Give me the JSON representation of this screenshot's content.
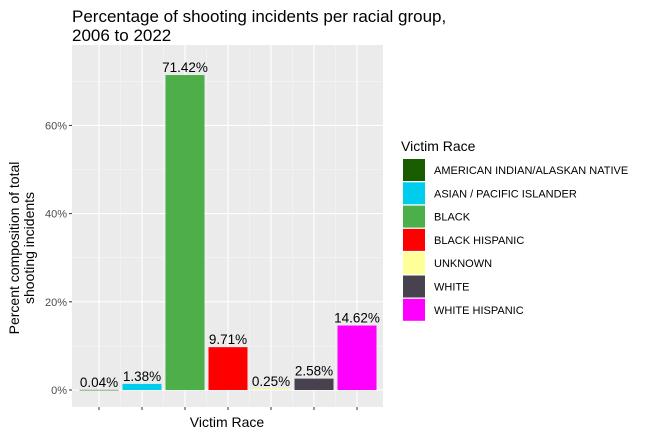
{
  "chart_data": {
    "type": "bar",
    "title_lines": [
      "Percentage of shooting incidents per racial group,",
      "2006 to 2022"
    ],
    "xlabel": "Victim Race",
    "ylabel_lines": [
      "Percent composition of total",
      "shooting incidents"
    ],
    "categories": [
      "AMERICAN INDIAN/ALASKAN NATIVE",
      "ASIAN / PACIFIC ISLANDER",
      "BLACK",
      "BLACK HISPANIC",
      "UNKNOWN",
      "WHITE",
      "WHITE HISPANIC"
    ],
    "values": [
      0.04,
      1.38,
      71.42,
      9.71,
      0.25,
      2.58,
      14.62
    ],
    "value_labels": [
      "0.04%",
      "1.38%",
      "71.42%",
      "9.71%",
      "0.25%",
      "2.58%",
      "14.62%"
    ],
    "colors": [
      "#1a5c00",
      "#00ccee",
      "#4caf4a",
      "#ff0000",
      "#ffff99",
      "#48424f",
      "#ff00ff"
    ],
    "ylim": [
      0,
      75
    ],
    "y_ticks": [
      0,
      20,
      40,
      60
    ],
    "y_tick_labels": [
      "0%",
      "20%",
      "40%",
      "60%"
    ],
    "x_tick_labels_shown": false,
    "grid": true,
    "legend": {
      "title": "Victim Race",
      "placement": "right"
    }
  }
}
